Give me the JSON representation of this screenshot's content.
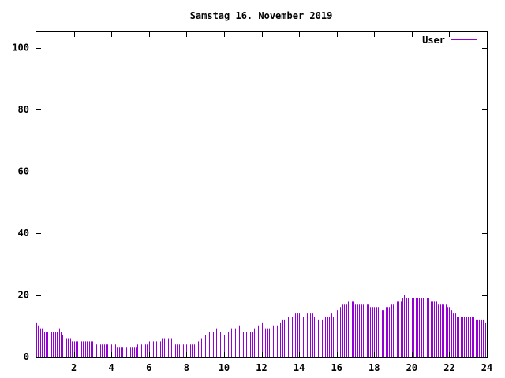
{
  "title": "Samstag 16. November 2019",
  "chart_data": {
    "type": "bar",
    "title": "Samstag 16. November 2019",
    "xlabel": "",
    "ylabel": "",
    "xlim": [
      0,
      24
    ],
    "ylim": [
      0,
      105
    ],
    "grid": false,
    "legend_position": "top-right",
    "x_ticks": [
      "2",
      "4",
      "6",
      "8",
      "10",
      "12",
      "14",
      "16",
      "18",
      "20",
      "22",
      "24"
    ],
    "y_ticks": [
      "0",
      "20",
      "40",
      "60",
      "80",
      "100"
    ],
    "series": [
      {
        "name": "User",
        "color": "#9400d3",
        "bar_interval_hours": 0.1,
        "values": [
          11,
          10,
          9,
          9,
          8,
          8,
          8,
          8,
          8,
          8,
          8,
          8,
          9,
          8,
          7,
          7,
          6,
          6,
          6,
          5,
          5,
          5,
          5,
          5,
          5,
          5,
          5,
          5,
          5,
          5,
          5,
          4,
          4,
          4,
          4,
          4,
          4,
          4,
          4,
          4,
          4,
          4,
          4,
          3,
          3,
          3,
          3,
          3,
          3,
          3,
          3,
          3,
          3,
          3,
          4,
          4,
          4,
          4,
          4,
          4,
          5,
          5,
          5,
          5,
          5,
          5,
          5,
          6,
          6,
          6,
          6,
          6,
          6,
          4,
          4,
          4,
          4,
          4,
          4,
          4,
          4,
          4,
          4,
          4,
          4,
          5,
          5,
          5,
          6,
          6,
          7,
          9,
          8,
          8,
          8,
          8,
          9,
          9,
          8,
          8,
          7,
          7,
          8,
          9,
          9,
          9,
          9,
          9,
          10,
          10,
          8,
          8,
          8,
          8,
          8,
          8,
          9,
          10,
          10,
          11,
          11,
          10,
          9,
          9,
          9,
          9,
          10,
          10,
          10,
          11,
          11,
          12,
          12,
          13,
          13,
          13,
          13,
          13,
          14,
          14,
          14,
          14,
          13,
          13,
          14,
          14,
          14,
          14,
          13,
          13,
          12,
          12,
          12,
          12,
          13,
          13,
          13,
          14,
          13,
          14,
          15,
          16,
          16,
          17,
          17,
          17,
          18,
          17,
          18,
          18,
          17,
          17,
          17,
          17,
          17,
          17,
          17,
          17,
          16,
          16,
          16,
          16,
          16,
          16,
          15,
          15,
          16,
          16,
          16,
          17,
          17,
          17,
          18,
          18,
          18,
          19,
          20,
          19,
          19,
          19,
          19,
          19,
          19,
          19,
          19,
          19,
          19,
          19,
          19,
          19,
          18,
          18,
          18,
          18,
          17,
          17,
          17,
          17,
          17,
          16,
          16,
          15,
          14,
          14,
          13,
          13,
          13,
          13,
          13,
          13,
          13,
          13,
          13,
          13,
          12,
          12,
          12,
          12,
          12,
          11,
          10
        ]
      }
    ]
  }
}
